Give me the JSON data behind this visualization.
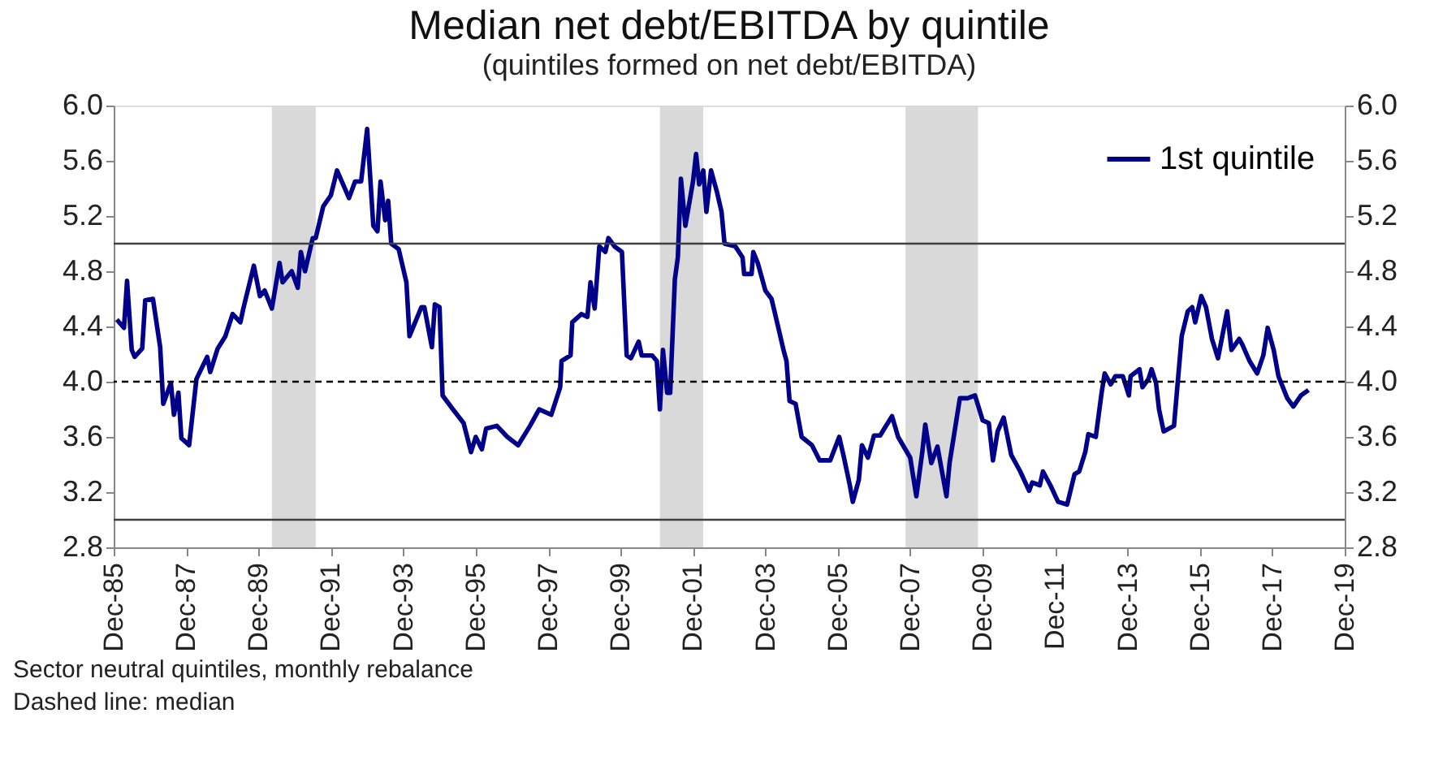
{
  "chart_data": {
    "type": "line",
    "title": "Median net debt/EBITDA by quintile",
    "subtitle": "(quintiles formed on net debt/EBITDA)",
    "x": [
      "1986-01-01",
      "1986-03-15",
      "1986-04-15",
      "1986-06-01",
      "1986-07-01",
      "1986-09-15",
      "1986-10-15",
      "1987-01-01",
      "1987-03-15",
      "1987-04-15",
      "1987-07-01",
      "1987-08-01",
      "1987-09-15",
      "1987-10-15",
      "1988-01-01",
      "1988-03-15",
      "1988-07-01",
      "1988-08-01",
      "1988-10-15",
      "1989-01-01",
      "1989-03-15",
      "1989-06-01",
      "1989-07-01",
      "1989-10-15",
      "1989-12-15",
      "1990-02-01",
      "1990-04-15",
      "1990-07-01",
      "1990-08-01",
      "1990-11-01",
      "1991-01-01",
      "1991-02-01",
      "1991-03-15",
      "1991-06-01",
      "1991-07-01",
      "1991-09-15",
      "1991-12-01",
      "1992-02-01",
      "1992-06-01",
      "1992-08-01",
      "1992-10-01",
      "1992-12-01",
      "1993-02-01",
      "1993-03-15",
      "1993-04-15",
      "1993-06-01",
      "1993-07-01",
      "1993-08-01",
      "1993-10-15",
      "1994-01-01",
      "1994-02-01",
      "1994-06-01",
      "1994-07-01",
      "1994-09-15",
      "1994-10-15",
      "1994-12-01",
      "1995-01-01",
      "1995-04-15",
      "1995-08-01",
      "1995-10-15",
      "1995-12-01",
      "1996-02-01",
      "1996-03-15",
      "1996-07-01",
      "1996-10-15",
      "1997-02-01",
      "1997-06-01",
      "1997-09-01",
      "1998-01-01",
      "1998-04-01",
      "1998-04-15",
      "1998-07-15",
      "1998-08-01",
      "1998-11-01",
      "1999-01-01",
      "1999-02-01",
      "1999-03-15",
      "1999-05-01",
      "1999-07-01",
      "1999-08-01",
      "1999-10-01",
      "1999-12-15",
      "2000-02-01",
      "2000-03-15",
      "2000-06-01",
      "2000-07-01",
      "2000-10-15",
      "2000-12-01",
      "2001-01-01",
      "2001-02-01",
      "2001-03-15",
      "2001-04-15",
      "2001-06-01",
      "2001-07-01",
      "2001-08-01",
      "2001-09-15",
      "2001-12-01",
      "2002-01-01",
      "2002-02-01",
      "2002-03-15",
      "2002-04-15",
      "2002-06-01",
      "2002-08-01",
      "2002-09-15",
      "2002-10-15",
      "2003-02-01",
      "2003-04-15",
      "2003-05-01",
      "2003-07-15",
      "2003-08-01",
      "2003-09-15",
      "2003-12-01",
      "2004-02-01",
      "2004-03-15",
      "2004-06-01",
      "2004-07-01",
      "2004-08-01",
      "2004-10-01",
      "2004-12-01",
      "2005-03-15",
      "2005-06-01",
      "2005-09-15",
      "2005-12-15",
      "2006-02-01",
      "2006-04-01",
      "2006-05-01",
      "2006-07-01",
      "2006-08-01",
      "2006-10-01",
      "2006-12-01",
      "2007-02-01",
      "2007-03-15",
      "2007-06-01",
      "2007-08-01",
      "2007-12-01",
      "2008-02-01",
      "2008-04-01",
      "2008-05-01",
      "2008-07-01",
      "2008-09-01",
      "2008-12-01",
      "2009-01-01",
      "2009-03-15",
      "2009-04-15",
      "2009-07-01",
      "2009-09-15",
      "2009-12-01",
      "2010-02-01",
      "2010-03-15",
      "2010-05-01",
      "2010-07-01",
      "2010-09-15",
      "2010-12-15",
      "2011-03-15",
      "2011-04-15",
      "2011-07-01",
      "2011-08-01",
      "2011-10-15",
      "2012-01-01",
      "2012-04-01",
      "2012-06-15",
      "2012-08-01",
      "2012-10-01",
      "2012-11-01",
      "2013-01-15",
      "2013-03-15",
      "2013-04-15",
      "2013-06-15",
      "2013-08-01",
      "2013-10-15",
      "2013-12-15",
      "2014-01-01",
      "2014-04-01",
      "2014-05-01",
      "2014-07-01",
      "2014-08-01",
      "2014-09-15",
      "2014-10-15",
      "2014-12-01",
      "2015-03-15",
      "2015-06-01",
      "2015-08-01",
      "2015-09-15",
      "2015-10-15",
      "2015-12-15",
      "2016-02-01",
      "2016-04-01",
      "2016-06-01",
      "2016-09-01",
      "2016-10-15",
      "2017-01-01",
      "2017-02-01",
      "2017-04-15",
      "2017-07-01",
      "2017-09-01",
      "2017-10-15",
      "2017-12-15",
      "2018-02-01",
      "2018-05-01",
      "2018-07-01",
      "2018-09-15",
      "2018-12-01"
    ],
    "series": [
      {
        "name": "1st quintile",
        "color": "#00008b",
        "values": [
          4.45,
          4.39,
          4.73,
          4.23,
          4.18,
          4.24,
          4.59,
          4.6,
          4.25,
          3.84,
          3.99,
          3.76,
          3.92,
          3.59,
          3.54,
          4.02,
          4.18,
          4.07,
          4.24,
          4.33,
          4.49,
          4.43,
          4.53,
          4.84,
          4.62,
          4.66,
          4.53,
          4.86,
          4.72,
          4.8,
          4.68,
          4.94,
          4.8,
          5.04,
          5.04,
          5.27,
          5.35,
          5.53,
          5.33,
          5.45,
          5.45,
          5.83,
          5.13,
          5.09,
          5.45,
          5.17,
          5.31,
          5.0,
          4.96,
          4.72,
          4.33,
          4.54,
          4.54,
          4.25,
          4.56,
          4.54,
          3.9,
          3.8,
          3.7,
          3.49,
          3.6,
          3.51,
          3.66,
          3.68,
          3.6,
          3.54,
          3.68,
          3.8,
          3.76,
          3.96,
          4.15,
          4.19,
          4.43,
          4.49,
          4.47,
          4.72,
          4.53,
          4.98,
          4.94,
          5.04,
          4.98,
          4.94,
          4.19,
          4.17,
          4.29,
          4.19,
          4.19,
          4.15,
          3.8,
          4.23,
          3.92,
          3.92,
          4.74,
          4.9,
          5.47,
          5.13,
          5.45,
          5.65,
          5.43,
          5.53,
          5.23,
          5.53,
          5.37,
          5.23,
          5.0,
          4.98,
          4.9,
          4.78,
          4.78,
          4.94,
          4.86,
          4.66,
          4.6,
          4.47,
          4.23,
          4.15,
          3.86,
          3.84,
          3.6,
          3.54,
          3.43,
          3.43,
          3.6,
          3.45,
          3.25,
          3.13,
          3.29,
          3.54,
          3.45,
          3.61,
          3.61,
          3.66,
          3.75,
          3.6,
          3.45,
          3.17,
          3.49,
          3.69,
          3.41,
          3.53,
          3.17,
          3.41,
          3.74,
          3.88,
          3.88,
          3.9,
          3.72,
          3.7,
          3.43,
          3.64,
          3.74,
          3.47,
          3.35,
          3.21,
          3.27,
          3.25,
          3.35,
          3.25,
          3.13,
          3.11,
          3.33,
          3.35,
          3.49,
          3.62,
          3.6,
          3.92,
          4.06,
          3.98,
          4.04,
          4.04,
          3.9,
          4.04,
          4.09,
          3.96,
          4.02,
          4.09,
          3.99,
          3.8,
          3.64,
          3.68,
          4.33,
          4.51,
          4.54,
          4.43,
          4.62,
          4.54,
          4.31,
          4.17,
          4.51,
          4.23,
          4.31,
          4.27,
          4.15,
          4.06,
          4.19,
          4.39,
          4.23,
          4.04,
          3.88,
          3.82,
          3.9,
          3.94
        ]
      }
    ],
    "xlim": [
      "1985-12-01",
      "2019-12-01"
    ],
    "xticks": [
      {
        "value": "1985-12-01",
        "label": "Dec-85"
      },
      {
        "value": "1987-12-01",
        "label": "Dec-87"
      },
      {
        "value": "1989-12-01",
        "label": "Dec-89"
      },
      {
        "value": "1991-12-01",
        "label": "Dec-91"
      },
      {
        "value": "1993-12-01",
        "label": "Dec-93"
      },
      {
        "value": "1995-12-01",
        "label": "Dec-95"
      },
      {
        "value": "1997-12-01",
        "label": "Dec-97"
      },
      {
        "value": "1999-12-01",
        "label": "Dec-99"
      },
      {
        "value": "2001-12-01",
        "label": "Dec-01"
      },
      {
        "value": "2003-12-01",
        "label": "Dec-03"
      },
      {
        "value": "2005-12-01",
        "label": "Dec-05"
      },
      {
        "value": "2007-12-01",
        "label": "Dec-07"
      },
      {
        "value": "2009-12-01",
        "label": "Dec-09"
      },
      {
        "value": "2011-12-01",
        "label": "Dec-11"
      },
      {
        "value": "2013-12-01",
        "label": "Dec-13"
      },
      {
        "value": "2015-12-01",
        "label": "Dec-15"
      },
      {
        "value": "2017-12-01",
        "label": "Dec-17"
      },
      {
        "value": "2019-12-01",
        "label": "Dec-19"
      }
    ],
    "ylim": [
      2.8,
      6.0
    ],
    "yticks": [
      {
        "value": 2.8,
        "label": "2.8"
      },
      {
        "value": 3.2,
        "label": "3.2"
      },
      {
        "value": 3.6,
        "label": "3.6"
      },
      {
        "value": 4.0,
        "label": "4.0"
      },
      {
        "value": 4.4,
        "label": "4.4"
      },
      {
        "value": 4.8,
        "label": "4.8"
      },
      {
        "value": 5.2,
        "label": "5.2"
      },
      {
        "value": 5.6,
        "label": "5.6"
      },
      {
        "value": 6.0,
        "label": "6.0"
      }
    ],
    "y2lim": [
      2.8,
      6.0
    ],
    "y2ticks": [
      {
        "value": 2.8,
        "label": "2.8"
      },
      {
        "value": 3.2,
        "label": "3.2"
      },
      {
        "value": 3.6,
        "label": "3.6"
      },
      {
        "value": 4.0,
        "label": "4.0"
      },
      {
        "value": 4.4,
        "label": "4.4"
      },
      {
        "value": 4.8,
        "label": "4.8"
      },
      {
        "value": 5.2,
        "label": "5.2"
      },
      {
        "value": 5.6,
        "label": "5.6"
      },
      {
        "value": 6.0,
        "label": "6.0"
      }
    ],
    "ref_lines": [
      {
        "axis": "y",
        "value": 5.0,
        "color": "#404040",
        "line_style": "solid"
      },
      {
        "axis": "y",
        "value": 4.0,
        "color": "#000000",
        "line_style": "dashed"
      },
      {
        "axis": "y",
        "value": 3.0,
        "color": "#404040",
        "line_style": "solid"
      }
    ],
    "bands": [
      {
        "axis": "x",
        "from": "1990-04-15",
        "to": "1991-07-01",
        "color": "#d9d9d9"
      },
      {
        "axis": "x",
        "from": "2001-01-01",
        "to": "2002-03-15",
        "color": "#d9d9d9"
      },
      {
        "axis": "x",
        "from": "2007-10-15",
        "to": "2009-10-15",
        "color": "#d9d9d9"
      }
    ],
    "annotations": [
      "Sector neutral quintiles, monthly rebalance",
      "Dashed line: median"
    ],
    "legend": "top right",
    "grid": false,
    "line_style": "solid"
  }
}
